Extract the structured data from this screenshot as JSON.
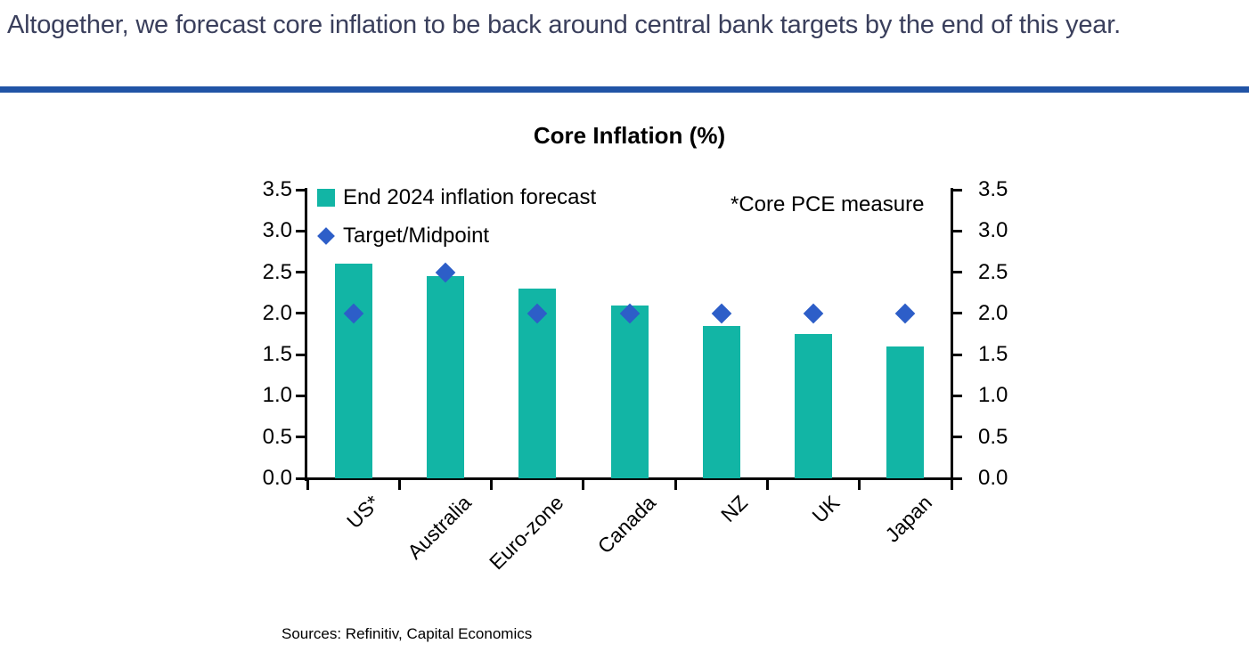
{
  "header": {
    "title": "Altogether, we forecast core inflation to be back around central bank targets by the end of this year."
  },
  "chart": {
    "title": "Core Inflation (%)",
    "annotation": "*Core PCE measure",
    "legend": [
      {
        "label": "End 2024 inflation forecast",
        "marker": "square"
      },
      {
        "label": "Target/Midpoint",
        "marker": "diamond"
      }
    ],
    "sources": "Sources: Refinitiv, Capital Economics"
  },
  "chart_data": {
    "type": "bar",
    "title": "Core Inflation (%)",
    "categories": [
      "US*",
      "Australia",
      "Euro-zone",
      "Canada",
      "NZ",
      "UK",
      "Japan"
    ],
    "series": [
      {
        "name": "End 2024 inflation forecast",
        "type": "bar",
        "color": "#12B5A5",
        "values": [
          2.6,
          2.45,
          2.3,
          2.1,
          1.85,
          1.75,
          1.6
        ]
      },
      {
        "name": "Target/Midpoint",
        "type": "scatter",
        "marker": "diamond",
        "color": "#2D5EC8",
        "values": [
          2.0,
          2.5,
          2.0,
          2.0,
          2.0,
          2.0,
          2.0
        ]
      }
    ],
    "xlabel": "",
    "ylabel": "",
    "ylim": [
      0,
      3.5
    ],
    "ytick_step": 0.5,
    "yticks": [
      "0.0",
      "0.5",
      "1.0",
      "1.5",
      "2.0",
      "2.5",
      "3.0",
      "3.5"
    ],
    "y_axis": "mirrored left and right",
    "grid": false,
    "legend_position": "upper left inside plot",
    "annotation": "*Core PCE measure"
  },
  "colors": {
    "bar_teal": "#12B5A5",
    "diamond_blue": "#2D5EC8",
    "rule_blue": "#2154A6",
    "headline_text": "#3A3F5C",
    "chart_text": "#000000"
  }
}
